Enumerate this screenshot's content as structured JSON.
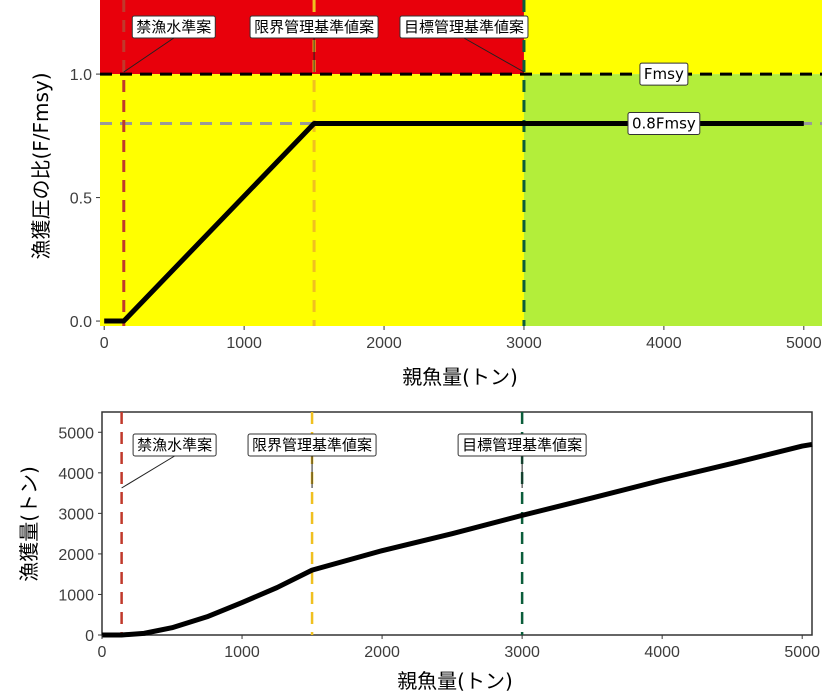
{
  "colors": {
    "red": "#E8000B",
    "yellow": "#FFFF00",
    "green": "#B3EE3A",
    "ban_line": "#C0392B",
    "limit_line": "#F0C020",
    "target_line": "#0B5D3B",
    "fmsy_line": "#000000",
    "f08_line": "#999999",
    "curve": "#000000"
  },
  "chart_data": [
    {
      "type": "line",
      "xlabel": "親魚量(トン)",
      "ylabel": "漁獲圧の比(F/Fmsy)",
      "xlim": [
        -30,
        5130
      ],
      "ylim": [
        -0.02,
        1.3
      ],
      "x_ticks": [
        0,
        1000,
        2000,
        3000,
        4000,
        5000
      ],
      "x_tick_labels": [
        "0",
        "1000",
        "2000",
        "3000",
        "4000",
        "5000"
      ],
      "y_ticks": [
        0.0,
        0.5,
        1.0
      ],
      "y_tick_labels": [
        "0.0",
        "0.5",
        "1.0"
      ],
      "grid": false,
      "zones": [
        {
          "x": [
            -30,
            3000
          ],
          "y": [
            1.0,
            1.3
          ],
          "color": "#E8000B"
        },
        {
          "x": [
            3000,
            5130
          ],
          "y": [
            1.0,
            1.3
          ],
          "color": "#FFFF00"
        },
        {
          "x": [
            -30,
            3000
          ],
          "y": [
            -0.02,
            1.0
          ],
          "color": "#FFFF00"
        },
        {
          "x": [
            3000,
            5130
          ],
          "y": [
            -0.02,
            1.0
          ],
          "color": "#B3EE3A"
        }
      ],
      "hlines": [
        {
          "y": 1.0,
          "label": "Fmsy",
          "label_x": 4000,
          "color": "#000000"
        },
        {
          "y": 0.8,
          "label": "0.8Fmsy",
          "label_x": 4000,
          "color": "#999999"
        }
      ],
      "vlines": [
        {
          "x": 140,
          "label": "禁漁水準案",
          "color": "#C0392B"
        },
        {
          "x": 1500,
          "label": "限界管理基準値案",
          "color": "#F0C020"
        },
        {
          "x": 3000,
          "label": "目標管理基準値案",
          "color": "#0B5D3B"
        }
      ],
      "x": [
        0,
        140,
        1500,
        3000,
        4000,
        5000
      ],
      "y": [
        0,
        0,
        0.8,
        0.8,
        0.8,
        0.8
      ]
    },
    {
      "type": "line",
      "xlabel": "親魚量(トン)",
      "ylabel": "漁獲量(トン)",
      "xlim": [
        0,
        5070
      ],
      "ylim": [
        0,
        5500
      ],
      "x_ticks": [
        0,
        1000,
        2000,
        3000,
        4000,
        5000
      ],
      "x_tick_labels": [
        "0",
        "1000",
        "2000",
        "3000",
        "4000",
        "5000"
      ],
      "y_ticks": [
        0,
        1000,
        2000,
        3000,
        4000,
        5000
      ],
      "y_tick_labels": [
        "0",
        "1000",
        "2000",
        "3000",
        "4000",
        "5000"
      ],
      "grid": false,
      "vlines": [
        {
          "x": 140,
          "label": "禁漁水準案",
          "color": "#C0392B"
        },
        {
          "x": 1500,
          "label": "限界管理基準値案",
          "color": "#F0C020"
        },
        {
          "x": 3000,
          "label": "目標管理基準値案",
          "color": "#0B5D3B"
        }
      ],
      "x": [
        0,
        140,
        300,
        500,
        750,
        1000,
        1250,
        1500,
        2000,
        2500,
        3000,
        3500,
        4000,
        4500,
        5000,
        5070
      ],
      "y": [
        0,
        0,
        40,
        180,
        450,
        800,
        1170,
        1600,
        2080,
        2500,
        2950,
        3380,
        3820,
        4230,
        4660,
        4700
      ]
    }
  ]
}
